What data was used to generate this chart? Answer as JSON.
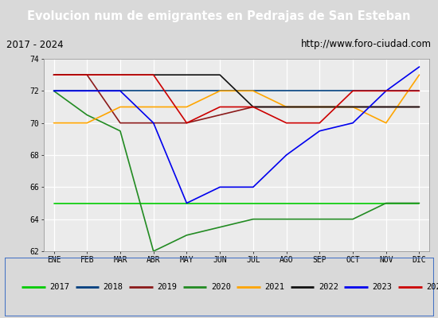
{
  "title": "Evolucion num de emigrantes en Pedrajas de San Esteban",
  "subtitle_left": "2017 - 2024",
  "subtitle_right": "http://www.foro-ciudad.com",
  "months": [
    "ENE",
    "FEB",
    "MAR",
    "ABR",
    "MAY",
    "JUN",
    "JUL",
    "AGO",
    "SEP",
    "OCT",
    "NOV",
    "DIC"
  ],
  "ylim": [
    62,
    74
  ],
  "yticks": [
    62,
    64,
    66,
    68,
    70,
    72,
    74
  ],
  "series": {
    "2017": {
      "color": "#00cc00",
      "values": [
        65,
        65,
        65,
        65,
        65,
        65,
        65,
        65,
        65,
        65,
        65,
        65
      ]
    },
    "2018": {
      "color": "#003f7f",
      "values": [
        72,
        72,
        72,
        72,
        72,
        72,
        72,
        72,
        72,
        72,
        72,
        72
      ]
    },
    "2019": {
      "color": "#8b1a1a",
      "values": [
        73,
        73,
        70,
        70,
        70,
        70.5,
        71,
        71,
        71,
        71,
        71,
        71
      ]
    },
    "2020": {
      "color": "#228b22",
      "values": [
        72,
        70.5,
        69.5,
        62,
        63,
        63.5,
        64,
        64,
        64,
        64,
        65,
        65
      ]
    },
    "2021": {
      "color": "#ffa500",
      "values": [
        70,
        70,
        71,
        71,
        71,
        72,
        72,
        71,
        71,
        71,
        70,
        73
      ]
    },
    "2022": {
      "color": "#111111",
      "values": [
        73,
        73,
        73,
        73,
        73,
        73,
        71,
        71,
        71,
        71,
        71,
        71
      ]
    },
    "2023": {
      "color": "#0000ee",
      "values": [
        72,
        72,
        72,
        70,
        65,
        66,
        66,
        68,
        69.5,
        70,
        72,
        73.5
      ]
    },
    "2024": {
      "color": "#cc0000",
      "values": [
        73,
        73,
        73,
        73,
        70,
        71,
        71,
        70,
        70,
        72,
        72,
        72
      ]
    }
  },
  "title_bg_color": "#4472c4",
  "title_font_color": "white",
  "subtitle_bg_color": "#d9d9d9",
  "plot_bg_color": "#ebebeb",
  "grid_color": "white",
  "legend_bg_color": "white",
  "legend_border_color": "#4472c4"
}
